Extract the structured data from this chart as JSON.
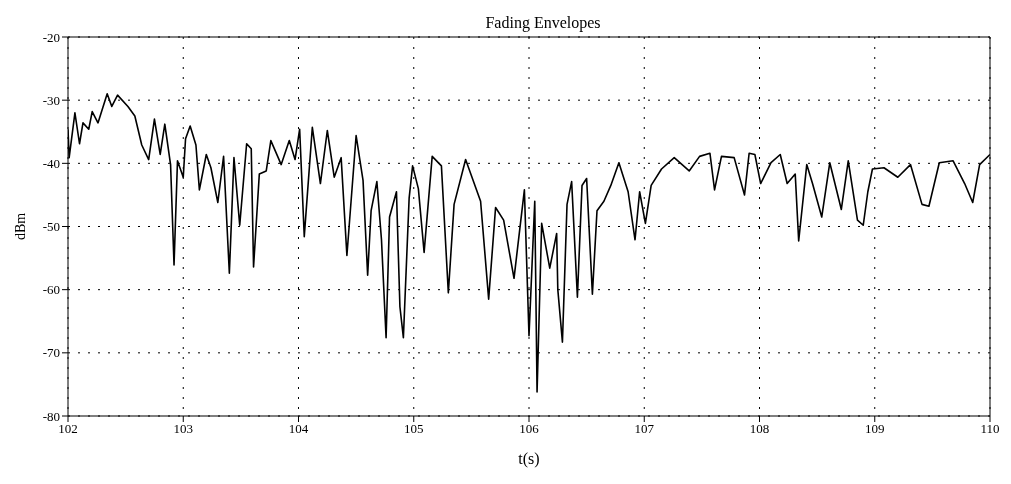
{
  "chart_data": {
    "type": "line",
    "title": "Fading Envelopes",
    "xlabel": "t(s)",
    "ylabel": "dBm",
    "xlim": [
      102,
      110
    ],
    "xticks": [
      102,
      103,
      104,
      105,
      106,
      107,
      108,
      109,
      110
    ],
    "ylim": [
      -80,
      -20
    ],
    "yticks": [
      -80,
      -70,
      -60,
      -50,
      -40,
      -30,
      -20
    ],
    "grid": true,
    "marker": "none",
    "line_style": "solid",
    "series": [
      {
        "color": "#000000",
        "x": [
          102.0,
          102.01,
          102.06,
          102.1,
          102.13,
          102.18,
          102.21,
          102.26,
          102.34,
          102.38,
          102.43,
          102.52,
          102.58,
          102.64,
          102.7,
          102.75,
          102.8,
          102.84,
          102.89,
          102.92,
          102.95,
          103.0,
          103.02,
          103.06,
          103.11,
          103.14,
          103.2,
          103.24,
          103.3,
          103.35,
          103.4,
          103.44,
          103.49,
          103.55,
          103.59,
          103.61,
          103.66,
          103.72,
          103.76,
          103.85,
          103.92,
          103.97,
          104.01,
          104.05,
          104.12,
          104.19,
          104.25,
          104.31,
          104.37,
          104.42,
          104.5,
          104.56,
          104.6,
          104.63,
          104.68,
          104.72,
          104.76,
          104.79,
          104.85,
          104.88,
          104.91,
          104.96,
          104.99,
          105.04,
          105.09,
          105.16,
          105.24,
          105.3,
          105.35,
          105.45,
          105.58,
          105.65,
          105.71,
          105.78,
          105.87,
          105.96,
          106.0,
          106.05,
          106.07,
          106.11,
          106.18,
          106.24,
          106.25,
          106.29,
          106.33,
          106.37,
          106.42,
          106.46,
          106.5,
          106.55,
          106.59,
          106.65,
          106.71,
          106.78,
          106.86,
          106.92,
          106.96,
          107.01,
          107.06,
          107.15,
          107.26,
          107.39,
          107.48,
          107.57,
          107.61,
          107.67,
          107.78,
          107.87,
          107.91,
          107.96,
          108.01,
          108.1,
          108.18,
          108.24,
          108.31,
          108.34,
          108.41,
          108.46,
          108.54,
          108.61,
          108.71,
          108.77,
          108.85,
          108.9,
          108.94,
          108.98,
          109.08,
          109.2,
          109.31,
          109.41,
          109.47,
          109.56,
          109.68,
          109.78,
          109.85,
          109.91,
          110.0
        ],
        "values": [
          -34.6,
          -39.1,
          -32.0,
          -36.9,
          -33.6,
          -34.6,
          -31.8,
          -33.6,
          -29.0,
          -31.0,
          -29.2,
          -31.0,
          -32.5,
          -37.1,
          -39.4,
          -33.0,
          -38.6,
          -33.8,
          -40.2,
          -56.1,
          -39.6,
          -42.2,
          -36.1,
          -34.1,
          -37.1,
          -44.2,
          -38.6,
          -40.7,
          -46.2,
          -38.9,
          -57.4,
          -39.1,
          -49.8,
          -36.9,
          -37.7,
          -56.4,
          -41.7,
          -41.2,
          -36.4,
          -40.2,
          -36.4,
          -39.4,
          -34.6,
          -51.6,
          -34.3,
          -43.2,
          -34.8,
          -42.2,
          -39.1,
          -54.6,
          -35.6,
          -42.7,
          -57.7,
          -47.5,
          -42.9,
          -52.1,
          -67.6,
          -48.5,
          -44.5,
          -62.7,
          -67.6,
          -45.5,
          -40.4,
          -44.0,
          -54.1,
          -38.9,
          -40.4,
          -60.5,
          -46.5,
          -39.4,
          -46.0,
          -61.5,
          -47.0,
          -49.0,
          -58.2,
          -44.2,
          -67.3,
          -46.0,
          -76.2,
          -49.5,
          -56.6,
          -51.1,
          -60.0,
          -68.3,
          -46.5,
          -42.9,
          -61.2,
          -43.5,
          -42.4,
          -60.7,
          -47.5,
          -46.0,
          -43.5,
          -39.9,
          -44.5,
          -52.1,
          -44.5,
          -49.5,
          -43.5,
          -40.9,
          -39.1,
          -41.2,
          -38.9,
          -38.4,
          -44.2,
          -38.9,
          -39.1,
          -45.0,
          -38.4,
          -38.6,
          -43.2,
          -39.9,
          -38.6,
          -43.2,
          -41.7,
          -52.3,
          -40.2,
          -43.2,
          -48.5,
          -39.9,
          -47.3,
          -39.6,
          -49.0,
          -49.8,
          -44.5,
          -40.9,
          -40.7,
          -42.2,
          -40.2,
          -46.5,
          -46.8,
          -39.9,
          -39.6,
          -43.2,
          -46.2,
          -40.2,
          -38.6
        ]
      }
    ]
  }
}
